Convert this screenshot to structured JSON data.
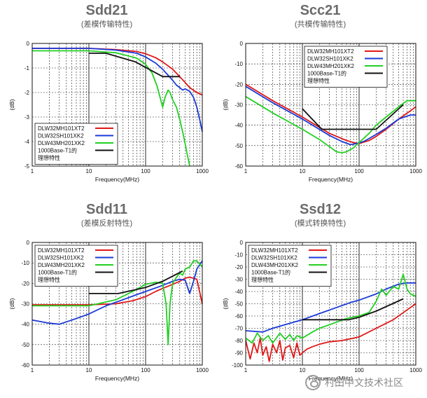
{
  "panels": [
    {
      "title": "Sdd21",
      "subtitle": "(差模传输特性)"
    },
    {
      "title": "Scc21",
      "subtitle": "(共模传输特性)"
    },
    {
      "title": "Sdd11",
      "subtitle": "(差模反射特性)"
    },
    {
      "title": "Ssd12",
      "subtitle": "(模式转换特性)"
    }
  ],
  "watermark": "村田中文技术社区",
  "chart_data": [
    {
      "type": "line",
      "title": "Sdd21",
      "subtitle": "(差模传输特性)",
      "xlabel": "Frequency(MHz)",
      "ylabel": "(dB)",
      "xscale": "log",
      "xlim": [
        1,
        1000
      ],
      "ylim": [
        -5,
        0
      ],
      "xticks": [
        "1",
        "10",
        "100",
        "1000"
      ],
      "yticks": [
        "0",
        "-1",
        "-2",
        "-3",
        "-4",
        "-5"
      ],
      "legend_position": "bottom-left",
      "grid": true,
      "series": [
        {
          "name": "DLW32MH101XT2",
          "color": "#e01818",
          "x": [
            1,
            10,
            30,
            70,
            100,
            150,
            200,
            300,
            400,
            600,
            800,
            1000
          ],
          "y": [
            -0.2,
            -0.2,
            -0.25,
            -0.33,
            -0.42,
            -0.58,
            -0.75,
            -1.05,
            -1.35,
            -1.8,
            -2.0,
            -2.1
          ]
        },
        {
          "name": "DLW32SH101XK2",
          "color": "#1a3ad8",
          "x": [
            1,
            10,
            30,
            70,
            100,
            150,
            200,
            250,
            300,
            350,
            400,
            450,
            500,
            600,
            700,
            800,
            900,
            1000
          ],
          "y": [
            -0.2,
            -0.2,
            -0.27,
            -0.4,
            -0.55,
            -0.8,
            -1.05,
            -1.3,
            -1.5,
            -1.7,
            -1.8,
            -1.9,
            -1.85,
            -1.95,
            -2.2,
            -2.6,
            -3.1,
            -3.6
          ]
        },
        {
          "name": "DLW43MH201XK2",
          "color": "#22d022",
          "x": [
            1,
            10,
            30,
            70,
            100,
            130,
            160,
            180,
            200,
            220,
            250,
            270,
            300,
            350,
            400,
            450,
            500,
            550,
            600
          ],
          "y": [
            -0.3,
            -0.3,
            -0.38,
            -0.6,
            -0.85,
            -1.2,
            -1.75,
            -2.2,
            -2.6,
            -2.2,
            -1.9,
            -2.0,
            -2.3,
            -2.6,
            -3.1,
            -3.6,
            -4.1,
            -4.6,
            -5.0
          ]
        },
        {
          "name": "1000Base-T1的\n理想特性",
          "color": "#111111",
          "x": [
            10,
            20,
            66,
            200,
            400
          ],
          "y": [
            -0.4,
            -0.4,
            -0.75,
            -1.35,
            -1.35
          ]
        }
      ]
    },
    {
      "type": "line",
      "title": "Scc21",
      "subtitle": "(共模传输特性)",
      "xlabel": "Frequency(MHz)",
      "ylabel": "(dB)",
      "xscale": "log",
      "xlim": [
        1,
        1000
      ],
      "ylim": [
        -60,
        0
      ],
      "xticks": [
        "1",
        "10",
        "100",
        "1000"
      ],
      "yticks": [
        "0",
        "-10",
        "-20",
        "-30",
        "-40",
        "-50",
        "-60"
      ],
      "legend_position": "top-right",
      "grid": true,
      "series": [
        {
          "name": "DLW32MH101XT2",
          "color": "#e01818",
          "x": [
            1,
            3,
            10,
            30,
            60,
            80,
            100,
            150,
            200,
            300,
            500,
            800,
            1000
          ],
          "y": [
            -20,
            -28,
            -36,
            -44,
            -47.5,
            -48.5,
            -49,
            -47.5,
            -45.5,
            -42,
            -37,
            -33,
            -31
          ]
        },
        {
          "name": "DLW32SH101XK2",
          "color": "#1a3ad8",
          "x": [
            1,
            3,
            10,
            30,
            50,
            70,
            90,
            120,
            150,
            200,
            300,
            500,
            800,
            1000
          ],
          "y": [
            -21,
            -29,
            -37,
            -45,
            -48,
            -49.5,
            -49,
            -48,
            -46.5,
            -44.5,
            -41.5,
            -37,
            -35,
            -35
          ]
        },
        {
          "name": "DLW43MH201XK2",
          "color": "#22d022",
          "x": [
            1,
            3,
            10,
            20,
            30,
            40,
            50,
            60,
            80,
            100,
            150,
            200,
            300,
            500,
            700,
            1000
          ],
          "y": [
            -26,
            -34,
            -42,
            -47,
            -50.5,
            -53,
            -53.5,
            -53,
            -51,
            -48.5,
            -44,
            -40,
            -36,
            -31,
            -28,
            -28
          ]
        },
        {
          "name": "1000Base-T1的\n理想特性",
          "color": "#111111",
          "x": [
            10,
            22,
            100,
            200,
            600
          ],
          "y": [
            -32,
            -42,
            -42,
            -42,
            -30
          ]
        }
      ]
    },
    {
      "type": "line",
      "title": "Sdd11",
      "subtitle": "(差模反射特性)",
      "xlabel": "Frequency(MHz)",
      "ylabel": "(dB)",
      "xscale": "log",
      "xlim": [
        1,
        1000
      ],
      "ylim": [
        -60,
        0
      ],
      "xticks": [
        "1",
        "10",
        "100",
        "1000"
      ],
      "yticks": [
        "0",
        "-10",
        "-20",
        "-30",
        "-40",
        "-50",
        "-60"
      ],
      "legend_position": "top-left",
      "grid": true,
      "series": [
        {
          "name": "DLW32MH101XT2",
          "color": "#e01818",
          "x": [
            1,
            10,
            30,
            60,
            100,
            150,
            200,
            300,
            400,
            500,
            600,
            800,
            1000
          ],
          "y": [
            -30.5,
            -30.5,
            -30,
            -28.5,
            -26.5,
            -24,
            -22.5,
            -20.5,
            -19,
            -17.5,
            -17,
            -18,
            -30
          ]
        },
        {
          "name": "DLW32SH101XK2",
          "color": "#1a3ad8",
          "x": [
            1,
            2,
            3,
            5,
            10,
            20,
            40,
            70,
            100,
            200,
            300,
            400,
            500,
            550,
            600,
            700,
            800,
            1000
          ],
          "y": [
            -38,
            -39.5,
            -40,
            -38,
            -35,
            -31,
            -28,
            -25.5,
            -24,
            -21,
            -19,
            -18,
            -18.5,
            -22,
            -25,
            -19,
            -13,
            -9
          ]
        },
        {
          "name": "DLW43MH201XK2",
          "color": "#22d022",
          "x": [
            1,
            10,
            30,
            50,
            80,
            100,
            150,
            200,
            230,
            250,
            270,
            300,
            350,
            400,
            450,
            500,
            600,
            700,
            800,
            1000
          ],
          "y": [
            -31,
            -31,
            -28,
            -25,
            -22,
            -20.5,
            -19.5,
            -20,
            -30,
            -50,
            -30,
            -20,
            -17,
            -15,
            -16,
            -13,
            -12,
            -9,
            -9,
            -12
          ]
        },
        {
          "name": "1000Base-T1的\n理想特性",
          "color": "#111111",
          "x": [
            10,
            33,
            100,
            200,
            450
          ],
          "y": [
            -25,
            -25,
            -22,
            -19,
            -14
          ]
        }
      ]
    },
    {
      "type": "line",
      "title": "Ssd12",
      "subtitle": "(模式转换特性)",
      "xlabel": "Frequency(MHz)",
      "ylabel": "(dB)",
      "xscale": "log",
      "xlim": [
        1,
        1000
      ],
      "ylim": [
        -100,
        0
      ],
      "xticks": [
        "1",
        "10",
        "100",
        "1000"
      ],
      "yticks": [
        "0",
        "-10",
        "-20",
        "-30",
        "-40",
        "-50",
        "-60",
        "-70",
        "-80",
        "-90",
        "-100"
      ],
      "legend_position": "top-left",
      "grid": true,
      "series": [
        {
          "name": "DLW32MH101XT2",
          "color": "#e01818",
          "x": [
            1,
            1.2,
            1.4,
            1.6,
            1.8,
            2,
            2.3,
            2.6,
            3,
            3.5,
            4,
            4.5,
            5,
            6,
            7,
            8,
            9,
            10,
            12,
            15,
            20,
            30,
            50,
            100,
            200,
            400,
            700,
            1000
          ],
          "y": [
            -80,
            -95,
            -82,
            -90,
            -78,
            -92,
            -85,
            -97,
            -83,
            -90,
            -80,
            -96,
            -86,
            -84,
            -94,
            -82,
            -92,
            -90,
            -87,
            -85,
            -83,
            -81,
            -80,
            -77,
            -70,
            -63,
            -55,
            -50
          ]
        },
        {
          "name": "DLW32SH101XK2",
          "color": "#1a3ad8",
          "x": [
            1,
            2,
            3,
            5,
            10,
            20,
            40,
            70,
            100,
            200,
            300,
            500,
            700,
            1000
          ],
          "y": [
            -72,
            -73,
            -70,
            -67,
            -63,
            -58,
            -53,
            -49,
            -47,
            -42,
            -38,
            -34,
            -33,
            -33
          ]
        },
        {
          "name": "DLW43MH201XK2",
          "color": "#22d022",
          "x": [
            1,
            1.3,
            1.6,
            2,
            2.5,
            3,
            4,
            5,
            6,
            7,
            8,
            10,
            15,
            20,
            40,
            60,
            100,
            150,
            200,
            250,
            300,
            400,
            500,
            600,
            700,
            800,
            1000
          ],
          "y": [
            -78,
            -82,
            -74,
            -80,
            -76,
            -82,
            -74,
            -79,
            -75,
            -80,
            -76,
            -78,
            -73,
            -70,
            -65,
            -62,
            -60,
            -57,
            -48,
            -38,
            -43,
            -36,
            -38,
            -26,
            -38,
            -42,
            -44
          ]
        },
        {
          "name": "1000Base-T1的\n理想特性",
          "color": "#111111",
          "x": [
            10,
            66,
            100,
            200,
            600
          ],
          "y": [
            -63,
            -63,
            -61,
            -56,
            -46
          ]
        }
      ]
    }
  ]
}
